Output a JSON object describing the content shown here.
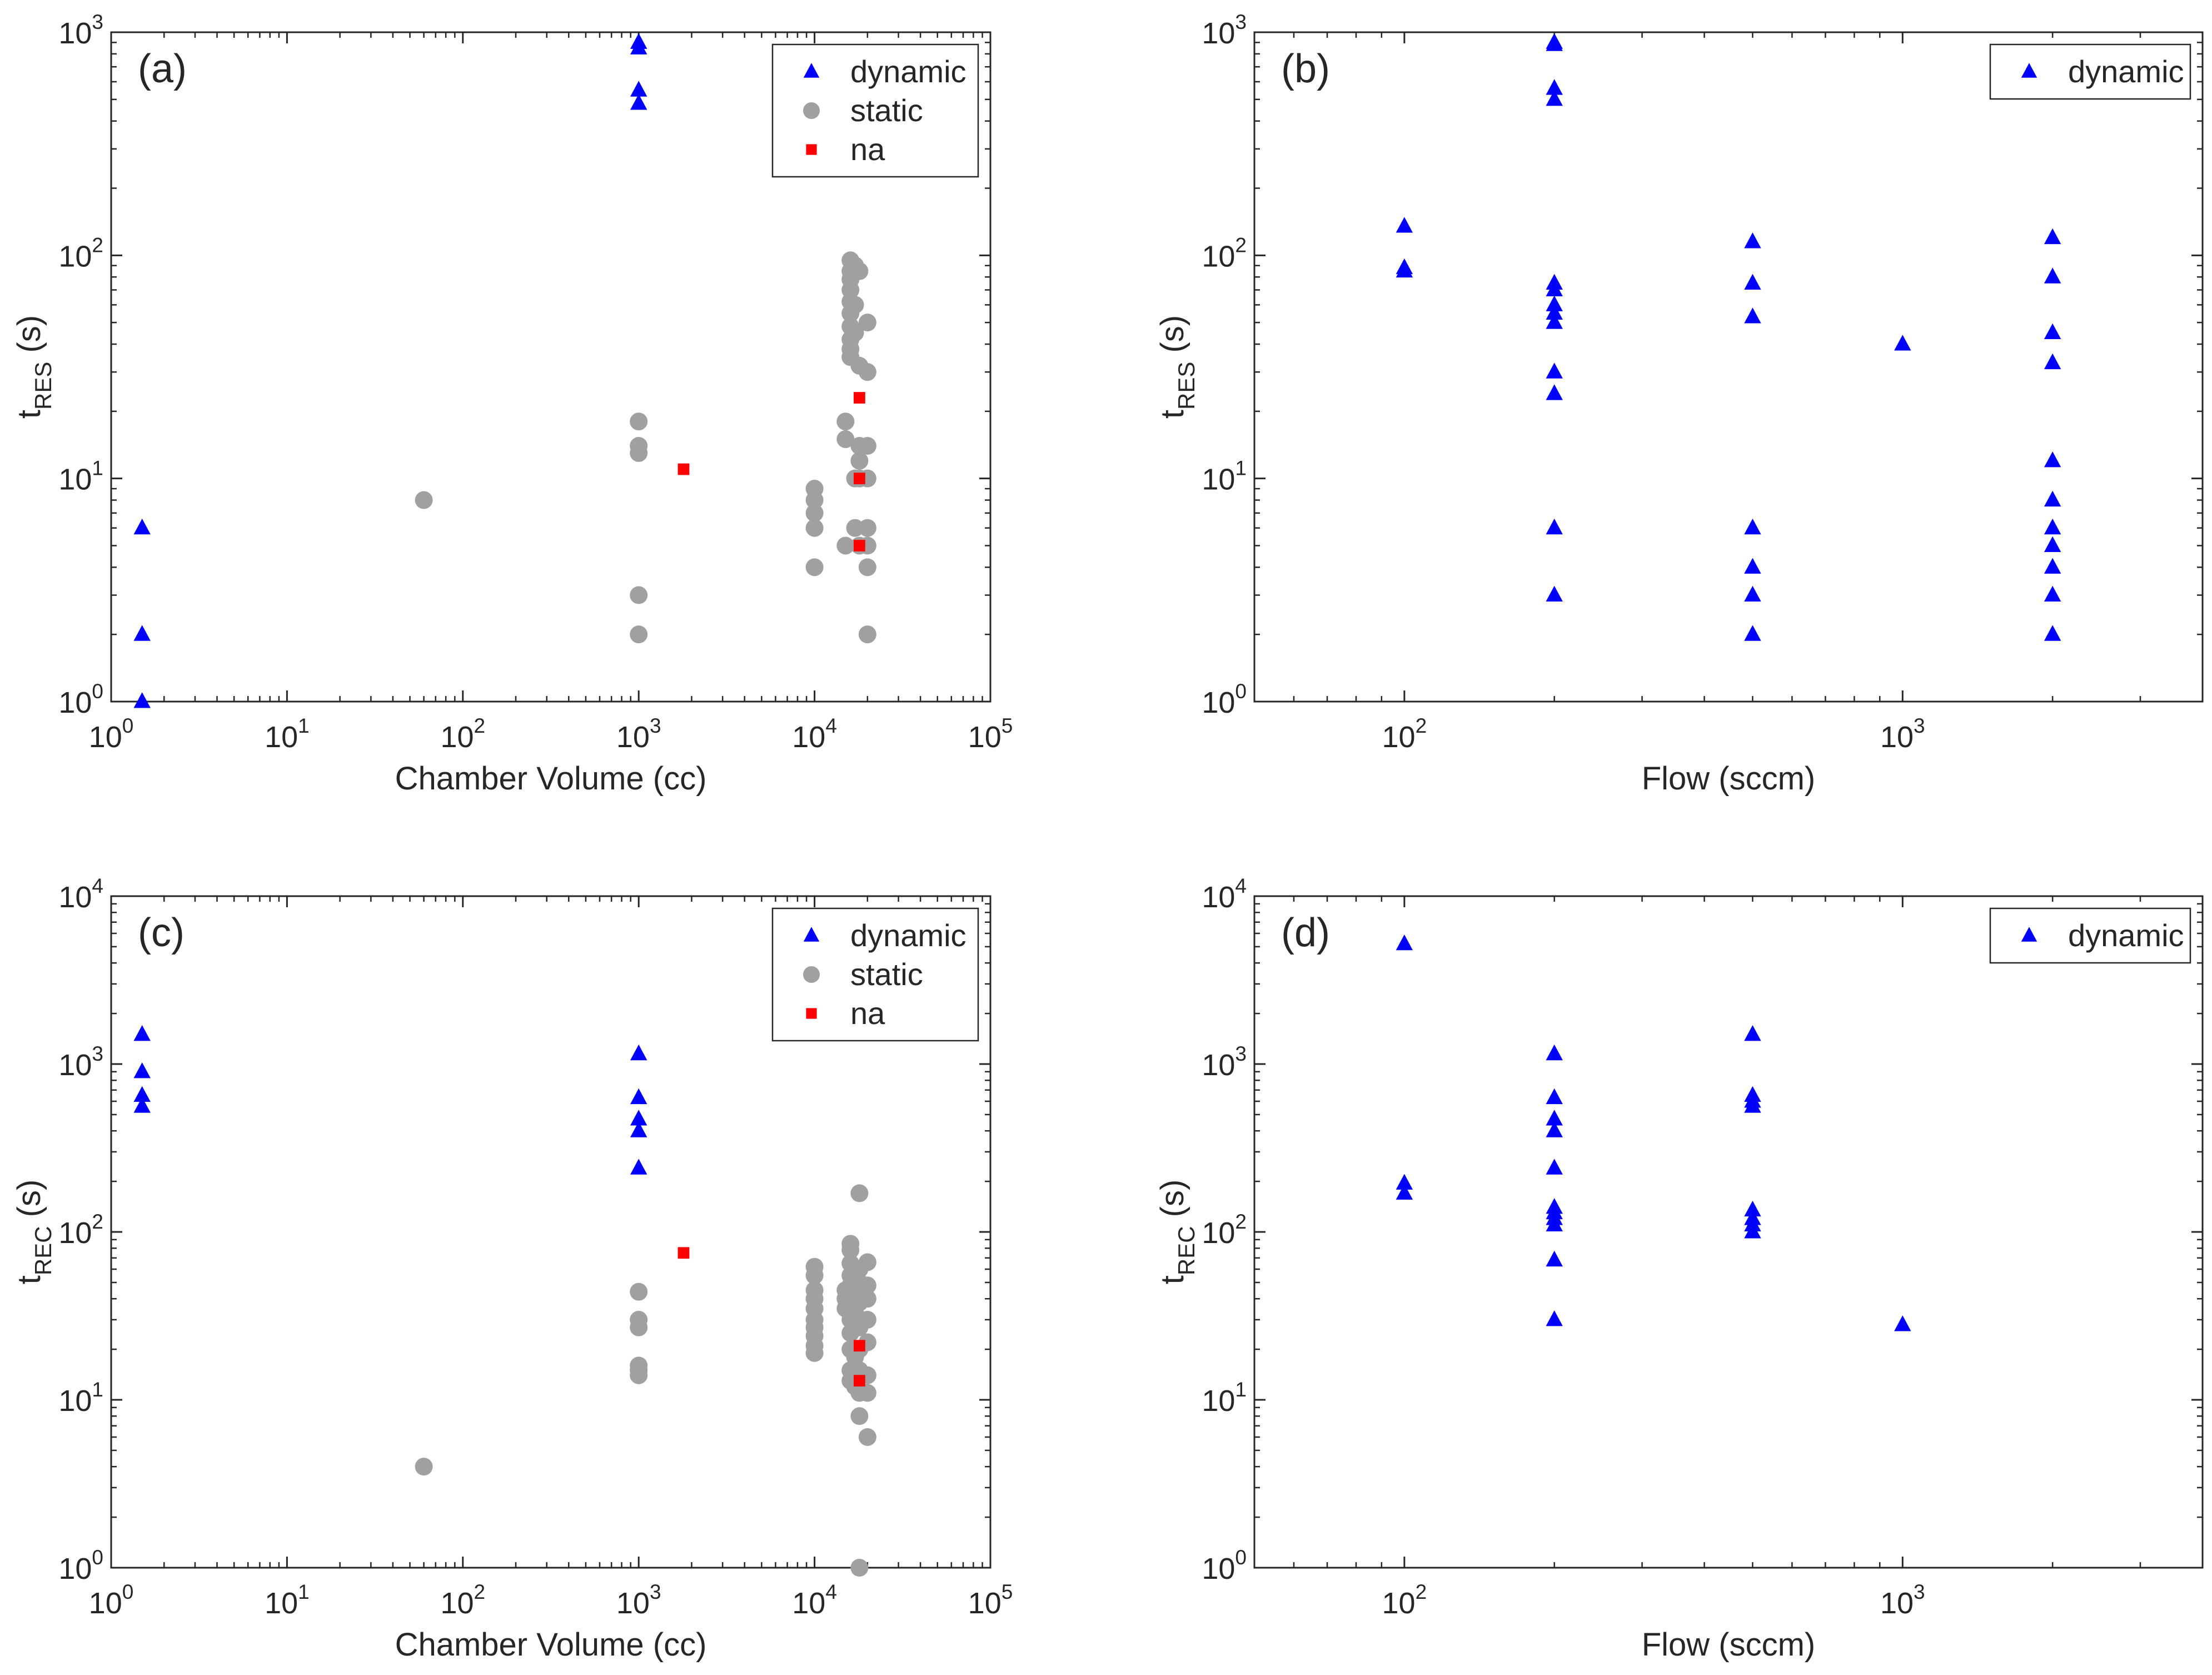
{
  "chart_data": [
    {
      "panel": "a",
      "type": "scatter",
      "panel_label": "(a)",
      "xlabel": "Chamber Volume (cc)",
      "ylabel": {
        "base": "t",
        "sub": "RES",
        "suffix": " (s)"
      },
      "xscale": "log",
      "yscale": "log",
      "xlim": [
        1,
        100000
      ],
      "ylim": [
        1,
        1000
      ],
      "x_ticks": [
        {
          "base": "10",
          "exp": "0"
        },
        {
          "base": "10",
          "exp": "1"
        },
        {
          "base": "10",
          "exp": "2"
        },
        {
          "base": "10",
          "exp": "3"
        },
        {
          "base": "10",
          "exp": "4"
        },
        {
          "base": "10",
          "exp": "5"
        }
      ],
      "y_ticks": [
        {
          "base": "10",
          "exp": "0"
        },
        {
          "base": "10",
          "exp": "1"
        },
        {
          "base": "10",
          "exp": "2"
        },
        {
          "base": "10",
          "exp": "3"
        }
      ],
      "legend_position": "top-right",
      "series": [
        {
          "name": "dynamic",
          "marker": "triangle",
          "color": "#0000ff",
          "points": [
            [
              1.5,
              6
            ],
            [
              1.5,
              2
            ],
            [
              1.5,
              1
            ],
            [
              1000,
              900
            ],
            [
              1000,
              850
            ],
            [
              1000,
              550
            ],
            [
              1000,
              480
            ]
          ]
        },
        {
          "name": "static",
          "marker": "circle",
          "color": "#a0a0a0",
          "points": [
            [
              60,
              8
            ],
            [
              1000,
              18
            ],
            [
              1000,
              14
            ],
            [
              1000,
              13
            ],
            [
              1000,
              3
            ],
            [
              1000,
              2
            ],
            [
              10000,
              9
            ],
            [
              10000,
              8
            ],
            [
              10000,
              7
            ],
            [
              10000,
              6
            ],
            [
              10000,
              4
            ],
            [
              15000,
              18
            ],
            [
              15000,
              15
            ],
            [
              15000,
              5
            ],
            [
              16000,
              95
            ],
            [
              16000,
              85
            ],
            [
              16000,
              78
            ],
            [
              16000,
              70
            ],
            [
              16000,
              62
            ],
            [
              16000,
              55
            ],
            [
              16000,
              48
            ],
            [
              16000,
              42
            ],
            [
              16000,
              38
            ],
            [
              16000,
              35
            ],
            [
              17000,
              90
            ],
            [
              17000,
              60
            ],
            [
              17000,
              45
            ],
            [
              17000,
              10
            ],
            [
              17000,
              6
            ],
            [
              18000,
              85
            ],
            [
              18000,
              32
            ],
            [
              18000,
              14
            ],
            [
              18000,
              12
            ],
            [
              18000,
              10
            ],
            [
              18000,
              5
            ],
            [
              20000,
              50
            ],
            [
              20000,
              30
            ],
            [
              20000,
              14
            ],
            [
              20000,
              10
            ],
            [
              20000,
              6
            ],
            [
              20000,
              5
            ],
            [
              20000,
              4
            ],
            [
              20000,
              2
            ]
          ]
        },
        {
          "name": "na",
          "marker": "square",
          "color": "#ff0000",
          "points": [
            [
              1800,
              11
            ],
            [
              18000,
              23
            ],
            [
              18000,
              10
            ],
            [
              18000,
              5
            ]
          ]
        }
      ]
    },
    {
      "panel": "b",
      "type": "scatter",
      "panel_label": "(b)",
      "xlabel": "Flow (sccm)",
      "ylabel": {
        "base": "t",
        "sub": "RES",
        "suffix": " (s)"
      },
      "xscale": "log",
      "yscale": "log",
      "xlim": [
        50,
        4000
      ],
      "ylim": [
        1,
        1000
      ],
      "x_ticks": [
        {
          "value": 100,
          "base": "10",
          "exp": "2"
        },
        {
          "value": 1000,
          "base": "10",
          "exp": "3"
        }
      ],
      "y_ticks": [
        {
          "base": "10",
          "exp": "0"
        },
        {
          "base": "10",
          "exp": "1"
        },
        {
          "base": "10",
          "exp": "2"
        },
        {
          "base": "10",
          "exp": "3"
        }
      ],
      "legend_position": "top-right",
      "series": [
        {
          "name": "dynamic",
          "marker": "triangle",
          "color": "#0000ff",
          "points": [
            [
              100,
              135
            ],
            [
              100,
              88
            ],
            [
              100,
              85
            ],
            [
              200,
              900
            ],
            [
              200,
              880
            ],
            [
              200,
              560
            ],
            [
              200,
              500
            ],
            [
              200,
              75
            ],
            [
              200,
              70
            ],
            [
              200,
              60
            ],
            [
              200,
              55
            ],
            [
              200,
              50
            ],
            [
              200,
              30
            ],
            [
              200,
              24
            ],
            [
              200,
              6
            ],
            [
              200,
              3
            ],
            [
              500,
              115
            ],
            [
              500,
              75
            ],
            [
              500,
              53
            ],
            [
              500,
              6
            ],
            [
              500,
              4
            ],
            [
              500,
              3
            ],
            [
              500,
              2
            ],
            [
              1000,
              40
            ],
            [
              2000,
              120
            ],
            [
              2000,
              80
            ],
            [
              2000,
              45
            ],
            [
              2000,
              33
            ],
            [
              2000,
              12
            ],
            [
              2000,
              8
            ],
            [
              2000,
              6
            ],
            [
              2000,
              5
            ],
            [
              2000,
              4
            ],
            [
              2000,
              3
            ],
            [
              2000,
              2
            ]
          ]
        }
      ]
    },
    {
      "panel": "c",
      "type": "scatter",
      "panel_label": "(c)",
      "xlabel": "Chamber Volume (cc)",
      "ylabel": {
        "base": "t",
        "sub": "REC",
        "suffix": " (s)"
      },
      "xscale": "log",
      "yscale": "log",
      "xlim": [
        1,
        100000
      ],
      "ylim": [
        1,
        10000
      ],
      "x_ticks": [
        {
          "base": "10",
          "exp": "0"
        },
        {
          "base": "10",
          "exp": "1"
        },
        {
          "base": "10",
          "exp": "2"
        },
        {
          "base": "10",
          "exp": "3"
        },
        {
          "base": "10",
          "exp": "4"
        },
        {
          "base": "10",
          "exp": "5"
        }
      ],
      "y_ticks": [
        {
          "base": "10",
          "exp": "0"
        },
        {
          "base": "10",
          "exp": "1"
        },
        {
          "base": "10",
          "exp": "2"
        },
        {
          "base": "10",
          "exp": "3"
        },
        {
          "base": "10",
          "exp": "4"
        }
      ],
      "legend_position": "top-right",
      "series": [
        {
          "name": "dynamic",
          "marker": "triangle",
          "color": "#0000ff",
          "points": [
            [
              1.5,
              1500
            ],
            [
              1.5,
              900
            ],
            [
              1.5,
              650
            ],
            [
              1.5,
              560
            ],
            [
              1000,
              1150
            ],
            [
              1000,
              630
            ],
            [
              1000,
              470
            ],
            [
              1000,
              400
            ],
            [
              1000,
              240
            ]
          ]
        },
        {
          "name": "static",
          "marker": "circle",
          "color": "#a0a0a0",
          "points": [
            [
              60,
              4
            ],
            [
              1000,
              44
            ],
            [
              1000,
              30
            ],
            [
              1000,
              27
            ],
            [
              1000,
              16
            ],
            [
              1000,
              15
            ],
            [
              1000,
              14
            ],
            [
              10000,
              62
            ],
            [
              10000,
              55
            ],
            [
              10000,
              45
            ],
            [
              10000,
              40
            ],
            [
              10000,
              35
            ],
            [
              10000,
              30
            ],
            [
              10000,
              27
            ],
            [
              10000,
              24
            ],
            [
              10000,
              21
            ],
            [
              10000,
              19
            ],
            [
              15000,
              45
            ],
            [
              15000,
              40
            ],
            [
              15000,
              35
            ],
            [
              16000,
              85
            ],
            [
              16000,
              78
            ],
            [
              16000,
              65
            ],
            [
              16000,
              55
            ],
            [
              16000,
              48
            ],
            [
              16000,
              40
            ],
            [
              16000,
              35
            ],
            [
              16000,
              30
            ],
            [
              16000,
              25
            ],
            [
              16000,
              20
            ],
            [
              16000,
              15
            ],
            [
              16000,
              13
            ],
            [
              17000,
              45
            ],
            [
              17000,
              33
            ],
            [
              17000,
              18
            ],
            [
              17000,
              12
            ],
            [
              18000,
              170
            ],
            [
              18000,
              60
            ],
            [
              18000,
              50
            ],
            [
              18000,
              42
            ],
            [
              18000,
              38
            ],
            [
              18000,
              27
            ],
            [
              18000,
              20
            ],
            [
              18000,
              15
            ],
            [
              18000,
              11
            ],
            [
              18000,
              8
            ],
            [
              18000,
              1
            ],
            [
              20000,
              66
            ],
            [
              20000,
              48
            ],
            [
              20000,
              40
            ],
            [
              20000,
              30
            ],
            [
              20000,
              22
            ],
            [
              20000,
              14
            ],
            [
              20000,
              11
            ],
            [
              20000,
              6
            ]
          ]
        },
        {
          "name": "na",
          "marker": "square",
          "color": "#ff0000",
          "points": [
            [
              1800,
              75
            ],
            [
              18000,
              21
            ],
            [
              18000,
              13
            ]
          ]
        }
      ]
    },
    {
      "panel": "d",
      "type": "scatter",
      "panel_label": "(d)",
      "xlabel": "Flow (sccm)",
      "ylabel": {
        "base": "t",
        "sub": "REC",
        "suffix": " (s)"
      },
      "xscale": "log",
      "yscale": "log",
      "xlim": [
        50,
        4000
      ],
      "ylim": [
        1,
        10000
      ],
      "x_ticks": [
        {
          "value": 100,
          "base": "10",
          "exp": "2"
        },
        {
          "value": 1000,
          "base": "10",
          "exp": "3"
        }
      ],
      "y_ticks": [
        {
          "base": "10",
          "exp": "0"
        },
        {
          "base": "10",
          "exp": "1"
        },
        {
          "base": "10",
          "exp": "2"
        },
        {
          "base": "10",
          "exp": "3"
        },
        {
          "base": "10",
          "exp": "4"
        }
      ],
      "legend_position": "top-right",
      "series": [
        {
          "name": "dynamic",
          "marker": "triangle",
          "color": "#0000ff",
          "points": [
            [
              100,
              5200
            ],
            [
              100,
              195
            ],
            [
              100,
              170
            ],
            [
              200,
              1150
            ],
            [
              200,
              630
            ],
            [
              200,
              470
            ],
            [
              200,
              400
            ],
            [
              200,
              240
            ],
            [
              200,
              140
            ],
            [
              200,
              130
            ],
            [
              200,
              120
            ],
            [
              200,
              110
            ],
            [
              200,
              68
            ],
            [
              200,
              30
            ],
            [
              500,
              1500
            ],
            [
              500,
              650
            ],
            [
              500,
              600
            ],
            [
              500,
              560
            ],
            [
              500,
              135
            ],
            [
              500,
              120
            ],
            [
              500,
              110
            ],
            [
              500,
              100
            ],
            [
              1000,
              28
            ]
          ]
        }
      ]
    }
  ]
}
